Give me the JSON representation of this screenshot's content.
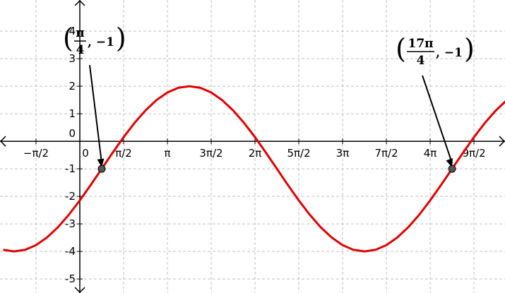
{
  "chart_data": {
    "type": "line",
    "x": [
      -2.749,
      -2.356,
      -1.963,
      -1.571,
      -1.178,
      -0.785,
      -0.393,
      0,
      0.393,
      0.785,
      1.178,
      1.571,
      1.963,
      2.356,
      2.749,
      3.142,
      3.534,
      3.927,
      4.32,
      4.712,
      5.105,
      5.498,
      5.89,
      6.283,
      6.676,
      7.069,
      7.461,
      7.854,
      8.247,
      8.639,
      9.032,
      9.425,
      9.817,
      10.21,
      10.603,
      10.996,
      11.388,
      11.781,
      12.174,
      12.566,
      12.959,
      13.352,
      13.744,
      14.137,
      14.53,
      14.923,
      15.315
    ],
    "series": [
      {
        "color": "#e00000",
        "values": [
          -3.942,
          -4,
          -3.942,
          -3.772,
          -3.494,
          -3.121,
          -2.667,
          -2.148,
          -1.585,
          -1,
          -0.415,
          0.148,
          0.667,
          1.121,
          1.494,
          1.772,
          1.942,
          2,
          1.942,
          1.772,
          1.494,
          1.121,
          0.667,
          0.148,
          -0.415,
          -1,
          -1.585,
          -2.148,
          -2.667,
          -3.121,
          -3.494,
          -3.772,
          -3.942,
          -4,
          -3.942,
          -3.772,
          -3.494,
          -3.121,
          -2.667,
          -2.148,
          -1.585,
          -1,
          -0.415,
          0.148,
          0.667,
          1.121,
          1.494
        ]
      }
    ],
    "points": [
      {
        "x": 0.785,
        "y": -1,
        "label_num": "π",
        "label_den": "4",
        "label_rest": ", −1"
      },
      {
        "x": 13.352,
        "y": -1,
        "label_num": "17π",
        "label_den": "4",
        "label_rest": ", −1"
      }
    ],
    "xlim": [
      -2.863,
      15.25
    ],
    "ylim": [
      -5.51,
      5.13
    ],
    "xticks": [
      {
        "value": -1.571,
        "label": "−π/2"
      },
      0,
      {
        "value": 1.571,
        "label": "π/2"
      },
      {
        "value": 3.142,
        "label": "π"
      },
      {
        "value": 4.712,
        "label": "3π/2"
      },
      {
        "value": 6.283,
        "label": "2π"
      },
      {
        "value": 7.854,
        "label": "5π/2"
      },
      {
        "value": 9.425,
        "label": "3π"
      },
      {
        "value": 10.996,
        "label": "7π/2"
      },
      {
        "value": 12.566,
        "label": "4π"
      },
      {
        "value": 14.137,
        "label": "9π/2"
      }
    ],
    "yticks": [
      -5,
      -4,
      -3,
      -2,
      -1,
      0,
      1,
      2,
      3,
      4
    ],
    "grid": true
  }
}
